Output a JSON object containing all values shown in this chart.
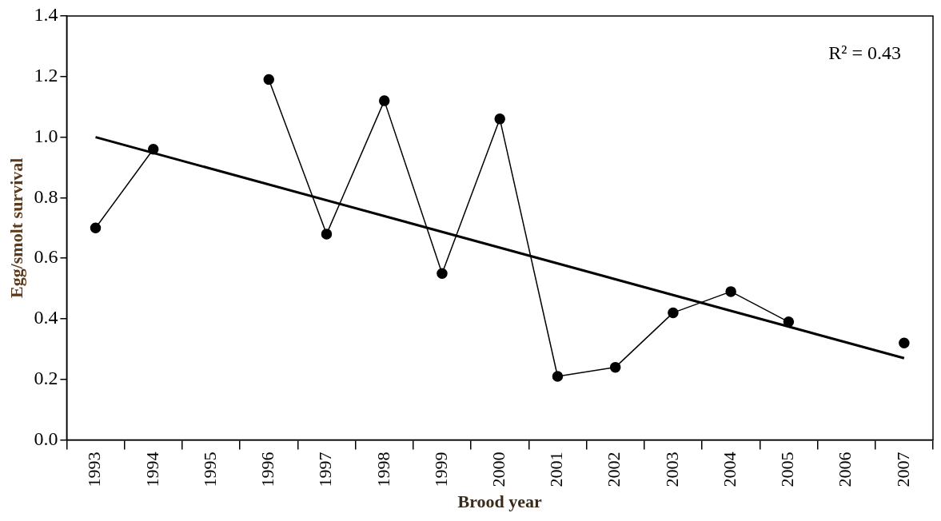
{
  "chart_data": {
    "type": "line",
    "xlabel": "Brood year",
    "ylabel": "Egg/smolt survival",
    "categories": [
      "1993",
      "1994",
      "1995",
      "1996",
      "1997",
      "1998",
      "1999",
      "2000",
      "2001",
      "2002",
      "2003",
      "2004",
      "2005",
      "2006",
      "2007"
    ],
    "series": [
      {
        "color": "#000000",
        "marker": "circle",
        "values": [
          0.7,
          0.96,
          null,
          1.19,
          0.68,
          1.12,
          0.55,
          1.06,
          0.21,
          0.24,
          0.42,
          0.49,
          0.39,
          null,
          0.32
        ]
      },
      {
        "type": "line",
        "color": "#000000",
        "marker": "none",
        "values": [
          1.0,
          null,
          null,
          null,
          null,
          null,
          null,
          null,
          null,
          null,
          null,
          null,
          null,
          null,
          0.27
        ]
      }
    ],
    "ylim": [
      0,
      1.4
    ],
    "yticks": [
      {
        "value": 0,
        "label": "0.0"
      },
      {
        "value": 0.2,
        "label": "0.2"
      },
      {
        "value": 0.4,
        "label": "0.4"
      },
      {
        "value": 0.6,
        "label": "0.6"
      },
      {
        "value": 0.8,
        "label": "0.8"
      },
      {
        "value": 1,
        "label": "1.0"
      },
      {
        "value": 1.2,
        "label": "1.2"
      },
      {
        "value": 1.4,
        "label": "1.4"
      }
    ],
    "annotations": [
      "R² = 0.43"
    ],
    "grid": false,
    "legend": false
  }
}
